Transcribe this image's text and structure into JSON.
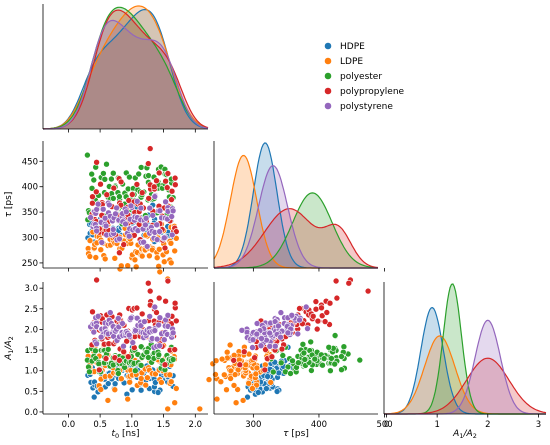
{
  "chart_data": {
    "type": "scatter",
    "kind": "pairplot (corner) with KDE diagonals",
    "grid": false,
    "legend_position": "top-right",
    "colors": {
      "HDPE": "#1f77b4",
      "LDPE": "#ff7f0e",
      "polyester": "#2ca02c",
      "polypropylene": "#d62728",
      "polystyrene": "#9467bd"
    },
    "legend": [
      "HDPE",
      "LDPE",
      "polyester",
      "polypropylene",
      "polystyrene"
    ],
    "variables": [
      {
        "key": "t0",
        "label_main": "t",
        "label_sub": "0",
        "label_unit": " [ns]",
        "range": [
          -0.4,
          2.2
        ],
        "ticks": [
          0.0,
          0.5,
          1.0,
          1.5,
          2.0
        ],
        "tick_labels": [
          "0.0",
          "0.5",
          "1.0",
          "1.5",
          "2.0"
        ]
      },
      {
        "key": "tau",
        "label_main": "τ",
        "label_sub": "",
        "label_unit": " [ps]",
        "range": [
          240,
          490
        ],
        "ticks": [
          300,
          400,
          500
        ],
        "tick_labels": [
          "300",
          "400",
          "500"
        ],
        "y_ticks": [
          250,
          300,
          350,
          400,
          450
        ],
        "y_tick_labels": [
          "250",
          "300",
          "350",
          "400",
          "450"
        ]
      },
      {
        "key": "A1A2",
        "label_main": "A",
        "label_sub": "1",
        "label_mid": "/A",
        "label_sub2": "2",
        "label_unit": "",
        "range": [
          -0.05,
          3.15
        ],
        "ticks": [
          0,
          1,
          2,
          3
        ],
        "tick_labels": [
          "0",
          "1",
          "2",
          "3"
        ],
        "y_ticks": [
          0.0,
          0.5,
          1.0,
          1.5,
          2.0,
          2.5,
          3.0
        ],
        "y_tick_labels": [
          "0.0",
          "0.5",
          "1.0",
          "1.5",
          "2.0",
          "2.5",
          "3.0"
        ]
      }
    ],
    "series": [
      {
        "name": "HDPE",
        "t0": {
          "mean": 0.95,
          "sd": 0.35,
          "min": 0.3,
          "max": 1.65
        },
        "tau": {
          "mean": 318,
          "sd": 18
        },
        "A1A2": {
          "mean": 0.9,
          "sd": 0.22
        }
      },
      {
        "name": "LDPE",
        "t0": {
          "mean": 1.0,
          "sd": 0.38,
          "min": 0.3,
          "max": 1.7
        },
        "tau": {
          "mean": 285,
          "sd": 20
        },
        "A1A2": {
          "mean": 1.05,
          "sd": 0.3
        }
      },
      {
        "name": "polyester",
        "t0": {
          "mean": 0.85,
          "sd": 0.35,
          "min": 0.3,
          "max": 1.65
        },
        "tau": {
          "mean": 390,
          "sd": 30
        },
        "A1A2": {
          "mean": 1.3,
          "sd": 0.18
        }
      },
      {
        "name": "polypropylene",
        "t0": {
          "mean": 1.0,
          "sd": 0.38,
          "min": 0.35,
          "max": 1.7
        },
        "tau": {
          "mean": 355,
          "sd": 38
        },
        "A1A2": {
          "mean": 2.0,
          "sd": 0.42
        }
      },
      {
        "name": "polystyrene",
        "t0": {
          "mean": 1.0,
          "sd": 0.35,
          "min": 0.35,
          "max": 1.65
        },
        "tau": {
          "mean": 330,
          "sd": 22
        },
        "A1A2": {
          "mean": 2.0,
          "sd": 0.25
        }
      }
    ]
  }
}
